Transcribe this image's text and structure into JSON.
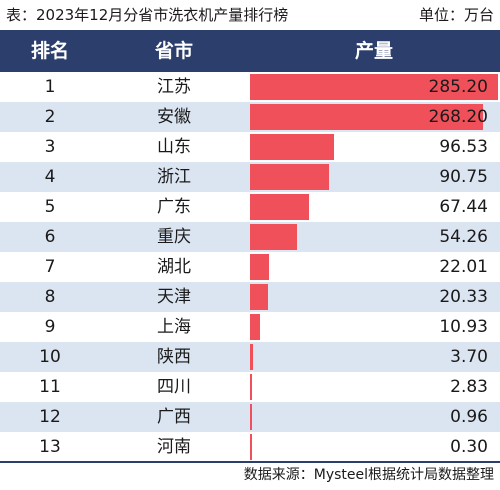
{
  "caption": {
    "title": "表：2023年12月分省市洗衣机产量排行榜",
    "unit": "单位：万台"
  },
  "header": {
    "rank": "排名",
    "province": "省市",
    "value": "产量"
  },
  "source": "数据来源：Mysteel根据统计局数据整理",
  "colors": {
    "header_bg": "#2b3e6c",
    "bar": "#f0505a",
    "alt_row": "#dbe4f1"
  },
  "chart_data": {
    "type": "table",
    "title": "表：2023年12月分省市洗衣机产量排行榜",
    "unit": "单位：万台",
    "columns": [
      "排名",
      "省市",
      "产量"
    ],
    "rows": [
      {
        "rank": "1",
        "province": "江苏",
        "value": 285.2,
        "label": "285.20"
      },
      {
        "rank": "2",
        "province": "安徽",
        "value": 268.2,
        "label": "268.20"
      },
      {
        "rank": "3",
        "province": "山东",
        "value": 96.53,
        "label": "96.53"
      },
      {
        "rank": "4",
        "province": "浙江",
        "value": 90.75,
        "label": "90.75"
      },
      {
        "rank": "5",
        "province": "广东",
        "value": 67.44,
        "label": "67.44"
      },
      {
        "rank": "6",
        "province": "重庆",
        "value": 54.26,
        "label": "54.26"
      },
      {
        "rank": "7",
        "province": "湖北",
        "value": 22.01,
        "label": "22.01"
      },
      {
        "rank": "8",
        "province": "天津",
        "value": 20.33,
        "label": "20.33"
      },
      {
        "rank": "9",
        "province": "上海",
        "value": 10.93,
        "label": "10.93"
      },
      {
        "rank": "10",
        "province": "陕西",
        "value": 3.7,
        "label": "3.70"
      },
      {
        "rank": "11",
        "province": "四川",
        "value": 2.83,
        "label": "2.83"
      },
      {
        "rank": "12",
        "province": "广西",
        "value": 0.96,
        "label": "0.96"
      },
      {
        "rank": "13",
        "province": "河南",
        "value": 0.3,
        "label": "0.30"
      }
    ]
  }
}
